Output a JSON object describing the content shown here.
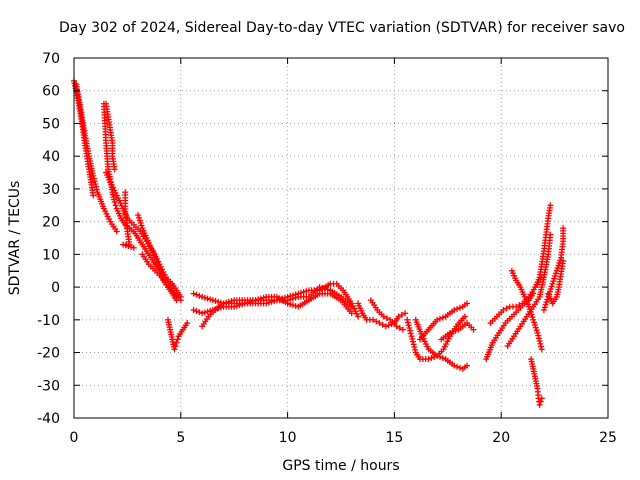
{
  "chart_data": {
    "type": "scatter",
    "title": "Day 302 of 2024, Sidereal Day-to-day VTEC variation (SDTVAR) for receiver savo",
    "xlabel": "GPS time / hours",
    "ylabel": "SDTVAR / TECUs",
    "xlim": [
      0,
      25
    ],
    "ylim": [
      -40,
      70
    ],
    "xticks": [
      "0",
      "5",
      "10",
      "15",
      "20",
      "25"
    ],
    "yticks": [
      "-40",
      "-30",
      "-20",
      "-10",
      "0",
      "10",
      "20",
      "30",
      "40",
      "50",
      "60",
      "70"
    ],
    "grid": true,
    "marker": "plus",
    "color": "#ff0000",
    "series": [
      {
        "name": "s1",
        "points": [
          [
            0.0,
            63
          ],
          [
            0.1,
            60
          ],
          [
            0.2,
            57
          ],
          [
            0.3,
            53
          ],
          [
            0.4,
            49
          ],
          [
            0.5,
            44
          ],
          [
            0.6,
            40
          ],
          [
            0.7,
            36
          ],
          [
            0.8,
            32
          ],
          [
            0.9,
            28
          ]
        ]
      },
      {
        "name": "s2",
        "points": [
          [
            0.1,
            62
          ],
          [
            0.3,
            55
          ],
          [
            0.5,
            47
          ],
          [
            0.7,
            40
          ],
          [
            0.9,
            34
          ],
          [
            1.1,
            29
          ],
          [
            1.4,
            24
          ],
          [
            1.7,
            20
          ],
          [
            2.0,
            17
          ]
        ]
      },
      {
        "name": "s3",
        "points": [
          [
            1.4,
            56
          ],
          [
            1.45,
            50
          ],
          [
            1.5,
            44
          ],
          [
            1.55,
            40
          ],
          [
            1.6,
            36
          ],
          [
            1.7,
            33
          ],
          [
            1.8,
            29
          ],
          [
            1.9,
            26
          ],
          [
            2.0,
            24
          ],
          [
            2.2,
            21
          ],
          [
            2.4,
            19
          ],
          [
            2.6,
            18
          ],
          [
            2.8,
            17
          ],
          [
            3.0,
            15
          ],
          [
            3.2,
            13
          ],
          [
            3.4,
            11
          ],
          [
            3.6,
            9
          ],
          [
            3.8,
            7
          ],
          [
            4.0,
            5
          ],
          [
            4.2,
            2
          ],
          [
            4.4,
            0
          ],
          [
            4.6,
            -2
          ],
          [
            4.8,
            -4
          ]
        ]
      },
      {
        "name": "s4",
        "points": [
          [
            1.5,
            56
          ],
          [
            1.6,
            52
          ],
          [
            1.7,
            48
          ],
          [
            1.8,
            44
          ],
          [
            1.8,
            40
          ],
          [
            1.9,
            36
          ]
        ]
      },
      {
        "name": "s5",
        "points": [
          [
            2.4,
            29
          ],
          [
            2.4,
            23
          ],
          [
            2.5,
            17
          ],
          [
            2.6,
            13
          ],
          [
            2.3,
            13
          ],
          [
            2.8,
            12
          ]
        ]
      },
      {
        "name": "s6",
        "points": [
          [
            1.5,
            35
          ],
          [
            1.7,
            32
          ],
          [
            2.0,
            28
          ],
          [
            2.3,
            24
          ],
          [
            2.5,
            21
          ],
          [
            2.8,
            19
          ],
          [
            3.1,
            17
          ],
          [
            3.4,
            14
          ],
          [
            3.7,
            11
          ],
          [
            4.0,
            7
          ],
          [
            4.3,
            3
          ],
          [
            4.6,
            -1
          ],
          [
            4.9,
            -3
          ]
        ]
      },
      {
        "name": "s7",
        "points": [
          [
            3.0,
            22
          ],
          [
            3.2,
            18
          ],
          [
            3.4,
            15
          ],
          [
            3.6,
            12
          ],
          [
            3.8,
            9
          ],
          [
            4.0,
            6
          ],
          [
            4.3,
            3
          ],
          [
            4.6,
            1
          ],
          [
            5.0,
            -3
          ]
        ]
      },
      {
        "name": "s8",
        "points": [
          [
            3.2,
            10
          ],
          [
            3.5,
            7
          ],
          [
            3.8,
            5
          ],
          [
            4.1,
            3
          ],
          [
            4.4,
            0
          ],
          [
            4.7,
            -2
          ],
          [
            5.0,
            -4
          ]
        ]
      },
      {
        "name": "s9",
        "points": [
          [
            4.4,
            -10
          ],
          [
            4.5,
            -13
          ],
          [
            4.6,
            -16
          ],
          [
            4.7,
            -19
          ],
          [
            4.8,
            -17
          ],
          [
            4.9,
            -15
          ],
          [
            5.1,
            -13
          ],
          [
            5.3,
            -11
          ]
        ]
      },
      {
        "name": "s10",
        "points": [
          [
            5.6,
            -2
          ],
          [
            6.0,
            -3
          ],
          [
            6.5,
            -4
          ],
          [
            7.0,
            -5
          ],
          [
            7.5,
            -5
          ],
          [
            8.0,
            -5
          ],
          [
            8.5,
            -4
          ],
          [
            9.0,
            -4
          ],
          [
            9.5,
            -4
          ],
          [
            10.0,
            -3
          ],
          [
            10.5,
            -2
          ],
          [
            11.0,
            -1
          ],
          [
            11.5,
            -1
          ],
          [
            12.0,
            1
          ],
          [
            12.3,
            1
          ],
          [
            12.6,
            -1
          ],
          [
            13.0,
            -5
          ],
          [
            13.3,
            -9
          ]
        ]
      },
      {
        "name": "s11",
        "points": [
          [
            5.6,
            -7
          ],
          [
            6.0,
            -8
          ],
          [
            6.5,
            -7
          ],
          [
            7.0,
            -6
          ],
          [
            7.5,
            -6
          ],
          [
            8.0,
            -5
          ],
          [
            8.5,
            -5
          ],
          [
            9.0,
            -5
          ],
          [
            9.5,
            -4
          ],
          [
            10.0,
            -4
          ],
          [
            10.5,
            -3
          ],
          [
            11.0,
            -3
          ],
          [
            11.5,
            0
          ],
          [
            12.0,
            -1
          ],
          [
            12.5,
            -3
          ],
          [
            13.0,
            -6
          ]
        ]
      },
      {
        "name": "s12",
        "points": [
          [
            6.0,
            -12
          ],
          [
            6.3,
            -9
          ],
          [
            6.6,
            -7
          ],
          [
            7.0,
            -5
          ],
          [
            7.5,
            -4
          ],
          [
            8.0,
            -4
          ],
          [
            8.5,
            -4
          ],
          [
            9.0,
            -3
          ],
          [
            9.5,
            -3
          ],
          [
            10.0,
            -5
          ],
          [
            10.5,
            -6
          ],
          [
            11.0,
            -4
          ],
          [
            11.5,
            -2
          ],
          [
            12.0,
            -2
          ],
          [
            12.5,
            -4
          ],
          [
            13.0,
            -8
          ]
        ]
      },
      {
        "name": "s13",
        "points": [
          [
            13.3,
            -5
          ],
          [
            13.5,
            -8
          ],
          [
            13.7,
            -10
          ],
          [
            14.0,
            -10
          ],
          [
            14.3,
            -11
          ],
          [
            14.6,
            -12
          ],
          [
            15.0,
            -11
          ],
          [
            15.2,
            -9
          ],
          [
            15.5,
            -8
          ]
        ]
      },
      {
        "name": "s14",
        "points": [
          [
            13.9,
            -4
          ],
          [
            14.2,
            -7
          ],
          [
            14.5,
            -9
          ],
          [
            14.8,
            -10
          ],
          [
            15.1,
            -12
          ],
          [
            15.4,
            -13
          ]
        ]
      },
      {
        "name": "s15",
        "points": [
          [
            15.6,
            -10
          ],
          [
            15.8,
            -15
          ],
          [
            16.0,
            -20
          ],
          [
            16.2,
            -22
          ],
          [
            16.6,
            -22
          ],
          [
            17.0,
            -21
          ],
          [
            17.3,
            -19
          ],
          [
            17.6,
            -15
          ],
          [
            17.9,
            -12
          ],
          [
            18.3,
            -9
          ]
        ]
      },
      {
        "name": "s16",
        "points": [
          [
            16.0,
            -10
          ],
          [
            16.3,
            -15
          ],
          [
            16.6,
            -19
          ],
          [
            17.0,
            -21
          ],
          [
            17.4,
            -22
          ],
          [
            17.8,
            -24
          ],
          [
            18.2,
            -25
          ],
          [
            18.4,
            -24
          ]
        ]
      },
      {
        "name": "s17",
        "points": [
          [
            16.2,
            -16
          ],
          [
            16.6,
            -13
          ],
          [
            17.0,
            -10
          ],
          [
            17.4,
            -9
          ],
          [
            17.8,
            -7
          ],
          [
            18.2,
            -6
          ],
          [
            18.4,
            -5
          ]
        ]
      },
      {
        "name": "s18",
        "points": [
          [
            17.2,
            -16
          ],
          [
            17.6,
            -14
          ],
          [
            18.0,
            -13
          ],
          [
            18.4,
            -11
          ],
          [
            18.7,
            -13
          ]
        ]
      },
      {
        "name": "s19",
        "points": [
          [
            19.3,
            -22
          ],
          [
            19.6,
            -17
          ],
          [
            19.9,
            -14
          ],
          [
            20.2,
            -11
          ],
          [
            20.5,
            -9
          ],
          [
            20.8,
            -7
          ],
          [
            21.1,
            -5
          ],
          [
            21.3,
            -4
          ],
          [
            21.5,
            -2
          ]
        ]
      },
      {
        "name": "s20",
        "points": [
          [
            19.5,
            -11
          ],
          [
            19.8,
            -9
          ],
          [
            20.1,
            -7
          ],
          [
            20.4,
            -6
          ],
          [
            20.7,
            -6
          ],
          [
            21.0,
            -5
          ],
          [
            21.3,
            -3
          ],
          [
            21.6,
            0
          ],
          [
            21.9,
            3
          ]
        ]
      },
      {
        "name": "s21",
        "points": [
          [
            20.3,
            -18
          ],
          [
            20.6,
            -15
          ],
          [
            20.9,
            -12
          ],
          [
            21.2,
            -9
          ],
          [
            21.5,
            -6
          ],
          [
            21.8,
            -3
          ],
          [
            22.0,
            3
          ],
          [
            22.2,
            10
          ],
          [
            22.3,
            16
          ]
        ]
      },
      {
        "name": "s22",
        "points": [
          [
            20.5,
            5
          ],
          [
            20.7,
            2
          ],
          [
            20.9,
            0
          ],
          [
            21.1,
            -3
          ],
          [
            21.3,
            -6
          ],
          [
            21.5,
            -10
          ],
          [
            21.7,
            -14
          ],
          [
            21.9,
            -19
          ]
        ]
      },
      {
        "name": "s23",
        "points": [
          [
            21.4,
            -22
          ],
          [
            21.5,
            -25
          ],
          [
            21.6,
            -28
          ],
          [
            21.7,
            -31
          ],
          [
            21.75,
            -34
          ],
          [
            21.8,
            -36
          ],
          [
            21.9,
            -34
          ]
        ]
      },
      {
        "name": "s24",
        "points": [
          [
            21.6,
            0
          ],
          [
            21.8,
            3
          ],
          [
            21.9,
            7
          ],
          [
            22.0,
            11
          ],
          [
            22.1,
            16
          ],
          [
            22.2,
            21
          ],
          [
            22.3,
            25
          ]
        ]
      },
      {
        "name": "s25",
        "points": [
          [
            22.0,
            -7
          ],
          [
            22.2,
            -3
          ],
          [
            22.4,
            1
          ],
          [
            22.6,
            5
          ],
          [
            22.8,
            9
          ],
          [
            22.9,
            14
          ],
          [
            22.9,
            18
          ]
        ]
      },
      {
        "name": "s26",
        "points": [
          [
            22.2,
            -2
          ],
          [
            22.4,
            -5
          ],
          [
            22.6,
            -3
          ],
          [
            22.7,
            0
          ],
          [
            22.8,
            4
          ],
          [
            22.9,
            8
          ]
        ]
      }
    ]
  }
}
